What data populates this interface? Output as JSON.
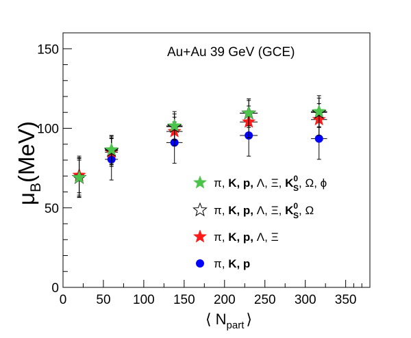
{
  "chart_data": {
    "type": "scatter",
    "title": "Au+Au 39 GeV (GCE)",
    "ylabel": {
      "main": "μ",
      "sub": "B",
      "rest": "(MeV)"
    },
    "xlabel": {
      "open": "⟨ N",
      "sub": "part",
      "close": "⟩"
    },
    "xlim": [
      0,
      380
    ],
    "ylim": [
      0,
      160
    ],
    "xticks": [
      0,
      50,
      100,
      150,
      200,
      250,
      300,
      350
    ],
    "yticks": [
      0,
      50,
      100,
      150
    ],
    "series": [
      {
        "marker": "star-filled",
        "color": "#4cc44c",
        "legend": {
          "parts": [
            "π, ",
            "K, ",
            "p, ",
            "Λ, Ξ, ",
            "K",
            "0",
            "S",
            ", Ω, ϕ"
          ]
        },
        "points": [
          {
            "x": 20,
            "y": 69,
            "yerr": 12,
            "xerr": 6
          },
          {
            "x": 60,
            "y": 86.5,
            "yerr": 9,
            "xerr": 8
          },
          {
            "x": 138,
            "y": 101.5,
            "yerr": 9,
            "xerr": 10
          },
          {
            "x": 230,
            "y": 109.5,
            "yerr": 9,
            "xerr": 11
          },
          {
            "x": 317,
            "y": 110.5,
            "yerr": 10,
            "xerr": 10
          }
        ]
      },
      {
        "marker": "star-open",
        "color": "#000000",
        "legend": {
          "parts": [
            "π, ",
            "K, ",
            "p, ",
            "Λ, Ξ, ",
            "K",
            "0",
            "S",
            ",  Ω"
          ]
        },
        "points": [
          {
            "x": 20,
            "y": 69,
            "yerr": 11,
            "xerr": 6
          },
          {
            "x": 60,
            "y": 86,
            "yerr": 9,
            "xerr": 8
          },
          {
            "x": 138,
            "y": 101,
            "yerr": 8,
            "xerr": 10
          },
          {
            "x": 230,
            "y": 109.5,
            "yerr": 8,
            "xerr": 11
          },
          {
            "x": 317,
            "y": 110,
            "yerr": 9,
            "xerr": 10
          }
        ]
      },
      {
        "marker": "star-filled",
        "color": "#ff1a1a",
        "legend": {
          "parts": [
            "π, ",
            "K, ",
            "p, ",
            "Λ, Ξ",
            "",
            "",
            "",
            ""
          ]
        },
        "points": [
          {
            "x": 20,
            "y": 70.5,
            "yerr": 11,
            "xerr": 6
          },
          {
            "x": 60,
            "y": 85,
            "yerr": 9,
            "xerr": 8
          },
          {
            "x": 138,
            "y": 98,
            "yerr": 9,
            "xerr": 10
          },
          {
            "x": 230,
            "y": 104,
            "yerr": 10,
            "xerr": 11
          },
          {
            "x": 317,
            "y": 105.5,
            "yerr": 10,
            "xerr": 10
          }
        ]
      },
      {
        "marker": "circle",
        "color": "#0000ff",
        "legend": {
          "parts": [
            "π, ",
            "K, ",
            "p",
            "",
            "",
            "",
            "",
            ""
          ]
        },
        "points": [
          {
            "x": 20,
            "y": 69.5,
            "yerr": 13,
            "xerr": 6
          },
          {
            "x": 60,
            "y": 80.5,
            "yerr": 13,
            "xerr": 8
          },
          {
            "x": 138,
            "y": 91,
            "yerr": 13,
            "xerr": 10
          },
          {
            "x": 230,
            "y": 95.5,
            "yerr": 13,
            "xerr": 11
          },
          {
            "x": 317,
            "y": 93.5,
            "yerr": 13,
            "xerr": 10
          }
        ]
      }
    ]
  }
}
